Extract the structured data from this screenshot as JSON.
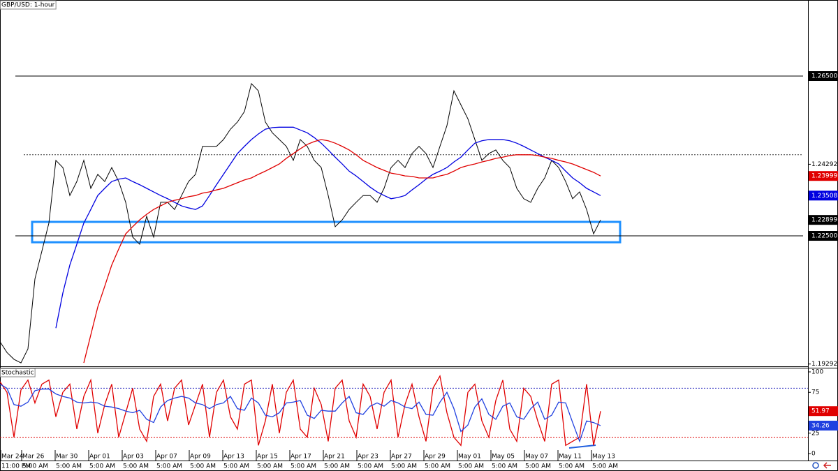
{
  "chart_data": [
    {
      "type": "line",
      "title": "GBP/USD: 1-hour",
      "ylim": [
        1.19234,
        1.28404
      ],
      "yticks": [
        {
          "value": 1.265,
          "label": "1.26500",
          "line": "solid"
        },
        {
          "value": 1.24292,
          "label": "1.24292"
        },
        {
          "value": 1.225,
          "label": "1.22500",
          "line": "solid"
        },
        {
          "value": 1.19292,
          "label": "1.19292"
        }
      ],
      "levels": [
        {
          "value": 1.2453,
          "style": "dotted"
        }
      ],
      "zone": {
        "range": [
          1.2234,
          1.2285
        ],
        "color": "#1e90ff"
      },
      "series": [
        {
          "name": "Price",
          "color": "#000000",
          "tag_text": "#ffffff",
          "values": [
            1.1985,
            1.1958,
            1.1941,
            1.1932,
            1.1967,
            1.2142,
            1.2212,
            1.2282,
            1.2439,
            1.2421,
            1.2351,
            1.2386,
            1.2439,
            1.2369,
            1.2404,
            1.2386,
            1.2421,
            1.2386,
            1.2334,
            1.2247,
            1.2229,
            1.2299,
            1.2247,
            1.2334,
            1.2334,
            1.2316,
            1.2351,
            1.2386,
            1.2404,
            1.2474,
            1.2474,
            1.2474,
            1.2491,
            1.2517,
            1.2535,
            1.2561,
            1.2631,
            1.2613,
            1.2535,
            1.2508,
            1.2491,
            1.2474,
            1.2439,
            1.2491,
            1.2474,
            1.2439,
            1.2421,
            1.2351,
            1.2273,
            1.229,
            1.2316,
            1.2334,
            1.2351,
            1.2351,
            1.2334,
            1.2369,
            1.2421,
            1.2439,
            1.2421,
            1.2456,
            1.2474,
            1.2456,
            1.2421,
            1.2474,
            1.2526,
            1.2613,
            1.2578,
            1.2543,
            1.2491,
            1.2439,
            1.2456,
            1.2465,
            1.2439,
            1.2421,
            1.2369,
            1.2343,
            1.2334,
            1.2369,
            1.2395,
            1.2439,
            1.2421,
            1.2386,
            1.2343,
            1.236,
            1.2316,
            1.2255,
            1.22899
          ]
        },
        {
          "name": "MA blue",
          "color": "#0000e0",
          "tag_text": "#ffffff",
          "values": [
            null,
            null,
            null,
            null,
            null,
            null,
            null,
            null,
            1.2019,
            1.2107,
            1.2177,
            1.2229,
            1.2282,
            1.2316,
            1.2351,
            1.2369,
            1.2386,
            1.2392,
            1.2395,
            1.2386,
            1.2378,
            1.2369,
            1.236,
            1.2351,
            1.2343,
            1.2334,
            1.2325,
            1.232,
            1.2316,
            1.2325,
            1.2351,
            1.2378,
            1.2404,
            1.243,
            1.2456,
            1.2474,
            1.2491,
            1.2505,
            1.2517,
            1.2521,
            1.2522,
            1.2522,
            1.2522,
            1.2515,
            1.2508,
            1.2496,
            1.2482,
            1.2465,
            1.2447,
            1.243,
            1.2412,
            1.24,
            1.2386,
            1.2372,
            1.236,
            1.2351,
            1.2343,
            1.2346,
            1.2351,
            1.2365,
            1.2378,
            1.2392,
            1.2404,
            1.2412,
            1.2421,
            1.2435,
            1.2447,
            1.2465,
            1.2482,
            1.2488,
            1.2491,
            1.2491,
            1.2491,
            1.2488,
            1.2482,
            1.2474,
            1.2465,
            1.2456,
            1.2447,
            1.2439,
            1.243,
            1.2412,
            1.2395,
            1.2383,
            1.2369,
            1.236,
            1.23508
          ]
        },
        {
          "name": "MA red",
          "color": "#e00000",
          "tag_text": "#ffffff",
          "values": [
            null,
            null,
            null,
            null,
            null,
            null,
            null,
            null,
            null,
            null,
            null,
            null,
            1.1932,
            1.2002,
            1.2072,
            1.2124,
            1.2177,
            1.2217,
            1.2255,
            1.2273,
            1.229,
            1.2304,
            1.2316,
            1.2325,
            1.2334,
            1.2339,
            1.2343,
            1.2348,
            1.2351,
            1.2357,
            1.236,
            1.2365,
            1.2369,
            1.2376,
            1.2383,
            1.239,
            1.2395,
            1.2404,
            1.2412,
            1.2421,
            1.243,
            1.2444,
            1.2456,
            1.2468,
            1.2479,
            1.2486,
            1.2491,
            1.2488,
            1.2482,
            1.2474,
            1.2465,
            1.2453,
            1.2439,
            1.243,
            1.2421,
            1.2414,
            1.2407,
            1.2404,
            1.24,
            1.2399,
            1.2395,
            1.2395,
            1.2395,
            1.24,
            1.2404,
            1.2412,
            1.2421,
            1.2426,
            1.243,
            1.2435,
            1.2439,
            1.2444,
            1.2447,
            1.2451,
            1.2453,
            1.2453,
            1.2453,
            1.2451,
            1.2447,
            1.2444,
            1.2439,
            1.2435,
            1.243,
            1.2423,
            1.2416,
            1.2409,
            1.23999
          ]
        }
      ]
    },
    {
      "type": "line",
      "title": "Stochastic",
      "ylim": [
        -8.5,
        105.1
      ],
      "yticks": [
        100,
        75,
        50,
        25,
        0
      ],
      "levels": [
        {
          "value": 80,
          "style": "dotted",
          "color": "#3030c0"
        },
        {
          "value": 20,
          "style": "dotted",
          "color": "#e00000"
        }
      ],
      "series": [
        {
          "name": "%K",
          "color": "#e00000",
          "tag_text": "#ffffff",
          "values": [
            88,
            75,
            20,
            78,
            90,
            62,
            85,
            90,
            45,
            75,
            85,
            30,
            70,
            90,
            25,
            60,
            85,
            20,
            50,
            80,
            30,
            15,
            70,
            85,
            40,
            80,
            90,
            35,
            60,
            85,
            20,
            75,
            90,
            45,
            30,
            85,
            90,
            10,
            40,
            85,
            25,
            75,
            90,
            30,
            20,
            80,
            60,
            15,
            80,
            90,
            40,
            20,
            85,
            70,
            30,
            75,
            90,
            20,
            60,
            85,
            45,
            15,
            80,
            95,
            50,
            20,
            10,
            75,
            85,
            40,
            20,
            65,
            90,
            30,
            15,
            80,
            70,
            40,
            15,
            85,
            90,
            10,
            15,
            20,
            85,
            10,
            51.97
          ]
        },
        {
          "name": "%D",
          "color": "#2040e0",
          "tag_text": "#ffffff",
          "values": [
            85,
            80,
            60,
            58,
            63,
            77,
            79,
            79,
            73,
            70,
            68,
            63,
            62,
            63,
            62,
            58,
            57,
            55,
            52,
            50,
            53,
            42,
            38,
            57,
            65,
            68,
            70,
            68,
            62,
            60,
            55,
            60,
            62,
            70,
            55,
            53,
            68,
            62,
            47,
            45,
            50,
            62,
            63,
            65,
            47,
            43,
            53,
            52,
            52,
            62,
            70,
            50,
            48,
            58,
            62,
            58,
            65,
            62,
            57,
            55,
            63,
            48,
            47,
            63,
            75,
            55,
            27,
            35,
            57,
            67,
            48,
            42,
            58,
            62,
            45,
            42,
            55,
            63,
            42,
            47,
            63,
            62,
            38,
            15,
            40,
            38,
            34.26
          ]
        }
      ],
      "x_labels": [
        {
          "date": "Mar 24",
          "time": "11:00 PM"
        },
        {
          "date": "Mar 26",
          "time": "5:00 AM"
        },
        {
          "date": "Mar 30",
          "time": "5:00 AM"
        },
        {
          "date": "Apr 01",
          "time": "5:00 AM"
        },
        {
          "date": "Apr 03",
          "time": "5:00 AM"
        },
        {
          "date": "Apr 07",
          "time": "5:00 AM"
        },
        {
          "date": "Apr 09",
          "time": "5:00 AM"
        },
        {
          "date": "Apr 13",
          "time": "5:00 AM"
        },
        {
          "date": "Apr 15",
          "time": "5:00 AM"
        },
        {
          "date": "Apr 17",
          "time": "5:00 AM"
        },
        {
          "date": "Apr 21",
          "time": "5:00 AM"
        },
        {
          "date": "Apr 23",
          "time": "5:00 AM"
        },
        {
          "date": "Apr 27",
          "time": "5:00 AM"
        },
        {
          "date": "Apr 29",
          "time": "5:00 AM"
        },
        {
          "date": "May 01",
          "time": "5:00 AM"
        },
        {
          "date": "May 05",
          "time": "5:00 AM"
        },
        {
          "date": "May 07",
          "time": "5:00 AM"
        },
        {
          "date": "May 11",
          "time": "5:00 AM"
        },
        {
          "date": "May 13",
          "time": "5:00 AM"
        }
      ]
    }
  ]
}
